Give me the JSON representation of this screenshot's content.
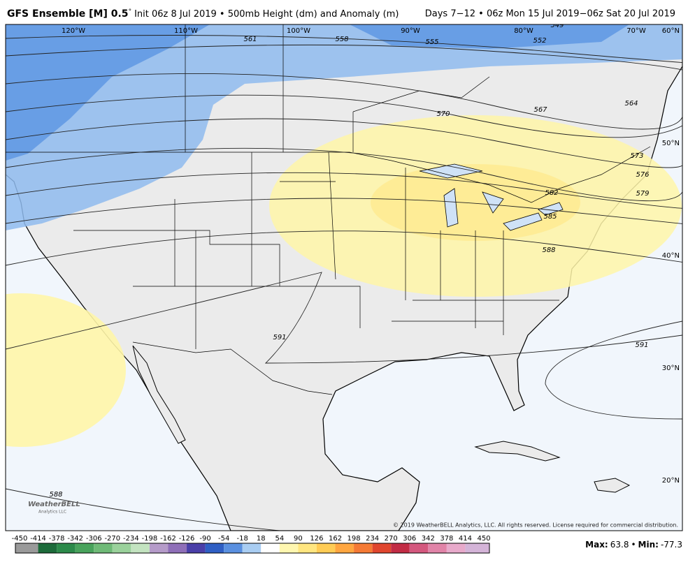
{
  "header": {
    "title_bold": "GFS Ensemble [M] 0.5",
    "degree": "°",
    "title_rest": "Init 06z 8 Jul 2019 • 500mb Height (dm) and Anomaly (m)",
    "valid": "Days 7−12 • 06z Mon 15 Jul 2019−06z Sat 20 Jul 2019"
  },
  "map": {
    "longitudes": [
      "120°W",
      "110°W",
      "100°W",
      "90°W",
      "80°W",
      "70°W"
    ],
    "latitudes": [
      "60°N",
      "50°N",
      "40°N",
      "30°N",
      "20°N"
    ],
    "contour_labels": [
      561,
      558,
      555,
      552,
      549,
      564,
      567,
      570,
      573,
      576,
      579,
      582,
      585,
      588,
      591,
      591,
      588
    ],
    "copyright": "© 2019 WeatherBELL Analytics, LLC. All rights reserved. License required for commercial distribution.",
    "logo": "WeatherBELL",
    "logo_sub": "Analytics LLC"
  },
  "colorbar": {
    "ticks": [
      -450,
      -414,
      -378,
      -342,
      -306,
      -270,
      -234,
      -198,
      -162,
      -126,
      -90,
      -54,
      -18,
      18,
      54,
      90,
      126,
      162,
      198,
      234,
      270,
      306,
      342,
      378,
      414,
      450
    ],
    "colors": [
      "#9a9a9a",
      "#1d6b3a",
      "#2c8a4a",
      "#49a35c",
      "#6fba77",
      "#9ad19b",
      "#c3e3c0",
      "#b59bc9",
      "#8f6fb8",
      "#4a3fa8",
      "#2f5fc4",
      "#5a90e0",
      "#a9cdf2",
      "#ffffff",
      "#fff7b0",
      "#ffe680",
      "#ffcc55",
      "#ffa640",
      "#f57a35",
      "#e0462e",
      "#c22c45",
      "#d4587e",
      "#e184a8",
      "#e8aacb",
      "#d4b4d8"
    ]
  },
  "stats": {
    "max_label": "Max:",
    "max": 63.8,
    "separator": "•",
    "min_label": "Min:",
    "min": -77.3
  }
}
